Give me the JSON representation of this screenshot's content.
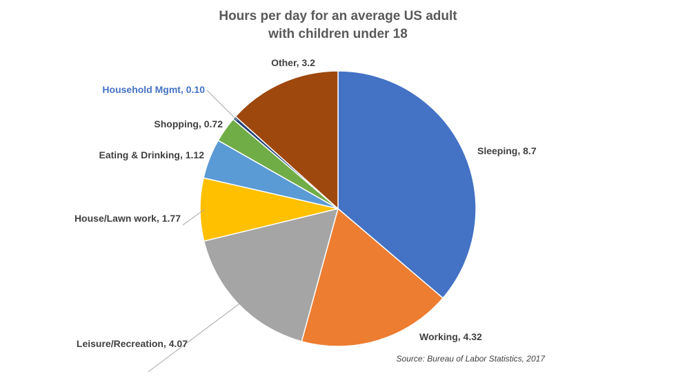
{
  "chart_data": {
    "type": "pie",
    "title": [
      "Hours per day for an average US adult",
      "with children under 18"
    ],
    "categories": [
      "Sleeping",
      "Working",
      "Leisure/Recreation",
      "House/Lawn work",
      "Eating & Drinking",
      "Shopping",
      "Household Mgmt",
      "Other"
    ],
    "values": [
      8.7,
      4.32,
      4.07,
      1.77,
      1.12,
      0.72,
      0.1,
      3.2
    ],
    "value_labels": [
      "8.7",
      "4.32",
      "4.07",
      "1.77",
      "1.12",
      "0.72",
      "0.10",
      "3.2"
    ],
    "colors": [
      "#4472c4",
      "#ed7d31",
      "#a5a5a5",
      "#ffc000",
      "#5b9bd5",
      "#70ad47",
      "#264478",
      "#9e480e"
    ],
    "source": "Source: Bureau of Labor Statistics, 2017"
  }
}
